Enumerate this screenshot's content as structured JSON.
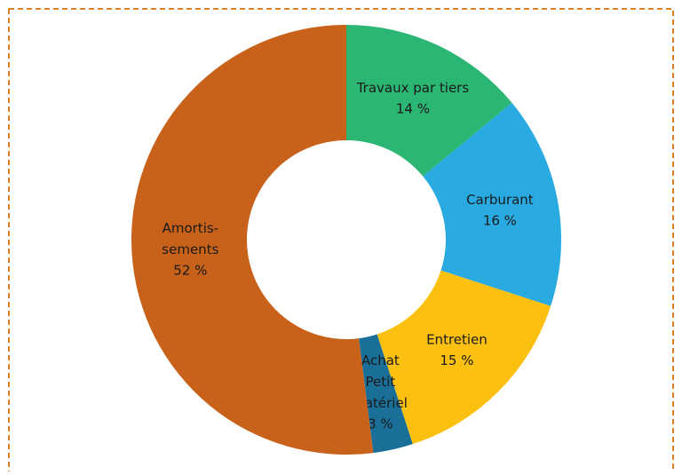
{
  "chart_data": {
    "type": "donut",
    "categories": [
      "Travaux par tiers",
      "Carburant",
      "Entretien",
      "Achat\nPetit\nMatériel",
      "Amortis-\nsements"
    ],
    "values": [
      14,
      16,
      15,
      3,
      52
    ],
    "value_labels": [
      "14 %",
      "16 %",
      "15 %",
      "3 %",
      "52 %"
    ],
    "colors": [
      "#2bb673",
      "#29abe2",
      "#fcc010",
      "#1a6f98",
      "#c8621a"
    ]
  }
}
